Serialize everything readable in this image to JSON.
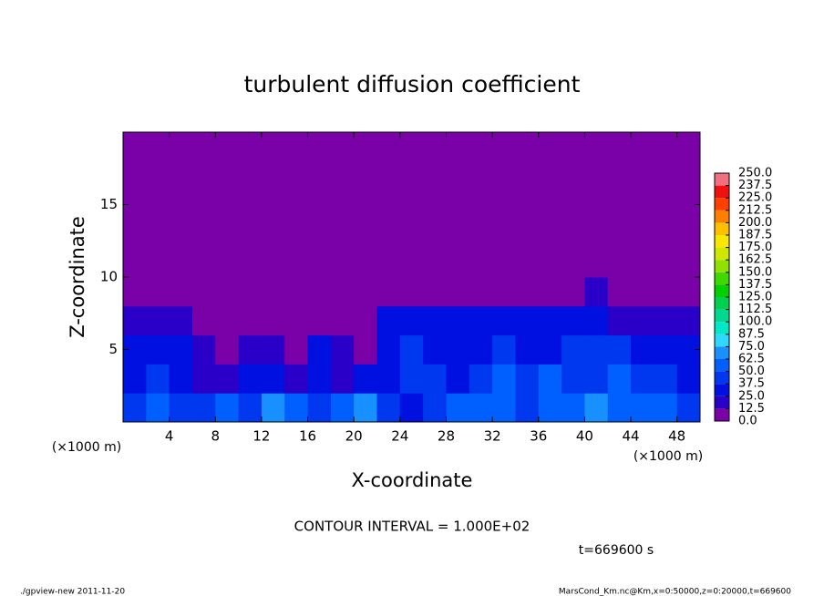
{
  "chart_data": {
    "type": "heatmap",
    "title": "turbulent diffusion coefficient",
    "x_label": "X-coordinate",
    "y_label": "Z-coordinate",
    "y_unit": "(×1000 m)",
    "x_unit": "(×1000 m)",
    "xlim": [
      0,
      50
    ],
    "ylim": [
      0,
      20
    ],
    "xticks": [
      4,
      8,
      12,
      16,
      20,
      24,
      28,
      32,
      36,
      40,
      44,
      48
    ],
    "yticks": [
      5,
      10,
      15
    ],
    "values": [
      [
        45,
        50,
        40,
        45,
        55,
        40,
        70,
        60,
        45,
        50,
        65,
        40,
        35,
        40,
        50,
        55,
        60,
        45,
        50,
        60,
        70,
        55,
        50,
        60,
        45
      ],
      [
        35,
        40,
        30,
        20,
        15,
        25,
        30,
        20,
        35,
        15,
        30,
        35,
        40,
        45,
        35,
        40,
        50,
        45,
        55,
        40,
        45,
        50,
        45,
        40,
        35
      ],
      [
        30,
        30,
        25,
        15,
        10,
        15,
        20,
        10,
        25,
        15,
        10,
        35,
        40,
        30,
        35,
        30,
        40,
        35,
        30,
        40,
        45,
        40,
        35,
        30,
        30
      ],
      [
        20,
        20,
        15,
        5,
        5,
        10,
        5,
        10,
        5,
        0,
        5,
        25,
        30,
        30,
        25,
        30,
        25,
        30,
        30,
        35,
        25,
        20,
        20,
        20,
        15
      ],
      [
        0,
        0,
        0,
        0,
        0,
        0,
        0,
        0,
        0,
        0,
        0,
        0,
        0,
        0,
        0,
        0,
        0,
        0,
        0,
        0,
        15,
        10,
        0,
        0,
        0
      ],
      [
        0,
        0,
        0,
        0,
        0,
        0,
        0,
        0,
        0,
        0,
        0,
        0,
        0,
        0,
        0,
        0,
        0,
        0,
        0,
        0,
        0,
        0,
        0,
        0,
        0
      ],
      [
        0,
        0,
        0,
        0,
        0,
        0,
        0,
        0,
        0,
        0,
        0,
        0,
        0,
        0,
        0,
        0,
        0,
        0,
        0,
        0,
        0,
        0,
        0,
        0,
        0
      ],
      [
        0,
        0,
        0,
        0,
        0,
        0,
        0,
        0,
        0,
        0,
        0,
        0,
        0,
        0,
        0,
        0,
        0,
        0,
        0,
        0,
        0,
        0,
        0,
        0,
        0
      ],
      [
        0,
        0,
        0,
        0,
        0,
        0,
        0,
        0,
        0,
        0,
        0,
        0,
        0,
        0,
        0,
        0,
        0,
        0,
        0,
        0,
        0,
        0,
        0,
        0,
        0
      ],
      [
        0,
        0,
        0,
        0,
        0,
        0,
        0,
        0,
        0,
        0,
        0,
        0,
        0,
        0,
        0,
        0,
        0,
        0,
        0,
        0,
        0,
        0,
        0,
        0,
        0
      ]
    ],
    "levels": [
      {
        "value": 0,
        "label": "0.0"
      },
      {
        "value": 12.5,
        "label": "12.5"
      },
      {
        "value": 25,
        "label": "25.0"
      },
      {
        "value": 37.5,
        "label": "37.5"
      },
      {
        "value": 50,
        "label": "50.0"
      },
      {
        "value": 62.5,
        "label": "62.5"
      },
      {
        "value": 75,
        "label": "75.0"
      },
      {
        "value": 87.5,
        "label": "87.5"
      },
      {
        "value": 100,
        "label": "100.0"
      },
      {
        "value": 112.5,
        "label": "112.5"
      },
      {
        "value": 125,
        "label": "125.0"
      },
      {
        "value": 137.5,
        "label": "137.5"
      },
      {
        "value": 150,
        "label": "150.0"
      },
      {
        "value": 162.5,
        "label": "162.5"
      },
      {
        "value": 175,
        "label": "175.0"
      },
      {
        "value": 187.5,
        "label": "187.5"
      },
      {
        "value": 200,
        "label": "200.0"
      },
      {
        "value": 212.5,
        "label": "212.5"
      },
      {
        "value": 225,
        "label": "225.0"
      },
      {
        "value": 237.5,
        "label": "237.5"
      },
      {
        "value": 250,
        "label": "250.0"
      }
    ],
    "colors": [
      "#7a00a8",
      "#2a00c8",
      "#0010e0",
      "#0038f0",
      "#0060ff",
      "#1890ff",
      "#30d8ff",
      "#00e8c8",
      "#00d890",
      "#00d050",
      "#00d000",
      "#40d800",
      "#90e000",
      "#d0e800",
      "#f8e800",
      "#ffc000",
      "#ff8000",
      "#ff4000",
      "#f01010",
      "#f07080"
    ],
    "contour_note": "CONTOUR INTERVAL = 1.000E+02",
    "time_label": "t=669600 s",
    "footer_left": "./gpview-new   2011-11-20",
    "footer_right": "MarsCond_Km.nc@Km,x=0:50000,z=0:20000,t=669600"
  }
}
